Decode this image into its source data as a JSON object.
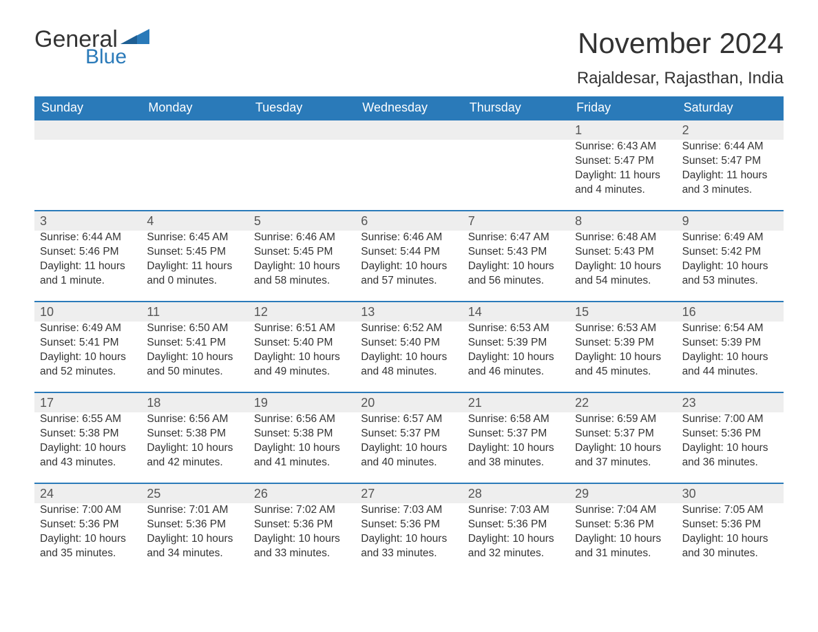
{
  "brand": {
    "word1": "General",
    "word2": "Blue",
    "accent_color": "#2a7ab9",
    "text_color": "#333333"
  },
  "title": "November 2024",
  "location": "Rajaldesar, Rajasthan, India",
  "colors": {
    "header_bg": "#2a7ab9",
    "header_text": "#ffffff",
    "daynum_bg": "#eeeeee",
    "daynum_border": "#2a7ab9",
    "body_text": "#333333",
    "page_bg": "#ffffff"
  },
  "typography": {
    "title_fontsize": 42,
    "location_fontsize": 24,
    "header_fontsize": 18,
    "daynum_fontsize": 18,
    "body_fontsize": 15.5
  },
  "weekdays": [
    "Sunday",
    "Monday",
    "Tuesday",
    "Wednesday",
    "Thursday",
    "Friday",
    "Saturday"
  ],
  "leading_blanks": 5,
  "days": [
    {
      "n": "1",
      "sunrise": "Sunrise: 6:43 AM",
      "sunset": "Sunset: 5:47 PM",
      "dl1": "Daylight: 11 hours",
      "dl2": "and 4 minutes."
    },
    {
      "n": "2",
      "sunrise": "Sunrise: 6:44 AM",
      "sunset": "Sunset: 5:47 PM",
      "dl1": "Daylight: 11 hours",
      "dl2": "and 3 minutes."
    },
    {
      "n": "3",
      "sunrise": "Sunrise: 6:44 AM",
      "sunset": "Sunset: 5:46 PM",
      "dl1": "Daylight: 11 hours",
      "dl2": "and 1 minute."
    },
    {
      "n": "4",
      "sunrise": "Sunrise: 6:45 AM",
      "sunset": "Sunset: 5:45 PM",
      "dl1": "Daylight: 11 hours",
      "dl2": "and 0 minutes."
    },
    {
      "n": "5",
      "sunrise": "Sunrise: 6:46 AM",
      "sunset": "Sunset: 5:45 PM",
      "dl1": "Daylight: 10 hours",
      "dl2": "and 58 minutes."
    },
    {
      "n": "6",
      "sunrise": "Sunrise: 6:46 AM",
      "sunset": "Sunset: 5:44 PM",
      "dl1": "Daylight: 10 hours",
      "dl2": "and 57 minutes."
    },
    {
      "n": "7",
      "sunrise": "Sunrise: 6:47 AM",
      "sunset": "Sunset: 5:43 PM",
      "dl1": "Daylight: 10 hours",
      "dl2": "and 56 minutes."
    },
    {
      "n": "8",
      "sunrise": "Sunrise: 6:48 AM",
      "sunset": "Sunset: 5:43 PM",
      "dl1": "Daylight: 10 hours",
      "dl2": "and 54 minutes."
    },
    {
      "n": "9",
      "sunrise": "Sunrise: 6:49 AM",
      "sunset": "Sunset: 5:42 PM",
      "dl1": "Daylight: 10 hours",
      "dl2": "and 53 minutes."
    },
    {
      "n": "10",
      "sunrise": "Sunrise: 6:49 AM",
      "sunset": "Sunset: 5:41 PM",
      "dl1": "Daylight: 10 hours",
      "dl2": "and 52 minutes."
    },
    {
      "n": "11",
      "sunrise": "Sunrise: 6:50 AM",
      "sunset": "Sunset: 5:41 PM",
      "dl1": "Daylight: 10 hours",
      "dl2": "and 50 minutes."
    },
    {
      "n": "12",
      "sunrise": "Sunrise: 6:51 AM",
      "sunset": "Sunset: 5:40 PM",
      "dl1": "Daylight: 10 hours",
      "dl2": "and 49 minutes."
    },
    {
      "n": "13",
      "sunrise": "Sunrise: 6:52 AM",
      "sunset": "Sunset: 5:40 PM",
      "dl1": "Daylight: 10 hours",
      "dl2": "and 48 minutes."
    },
    {
      "n": "14",
      "sunrise": "Sunrise: 6:53 AM",
      "sunset": "Sunset: 5:39 PM",
      "dl1": "Daylight: 10 hours",
      "dl2": "and 46 minutes."
    },
    {
      "n": "15",
      "sunrise": "Sunrise: 6:53 AM",
      "sunset": "Sunset: 5:39 PM",
      "dl1": "Daylight: 10 hours",
      "dl2": "and 45 minutes."
    },
    {
      "n": "16",
      "sunrise": "Sunrise: 6:54 AM",
      "sunset": "Sunset: 5:39 PM",
      "dl1": "Daylight: 10 hours",
      "dl2": "and 44 minutes."
    },
    {
      "n": "17",
      "sunrise": "Sunrise: 6:55 AM",
      "sunset": "Sunset: 5:38 PM",
      "dl1": "Daylight: 10 hours",
      "dl2": "and 43 minutes."
    },
    {
      "n": "18",
      "sunrise": "Sunrise: 6:56 AM",
      "sunset": "Sunset: 5:38 PM",
      "dl1": "Daylight: 10 hours",
      "dl2": "and 42 minutes."
    },
    {
      "n": "19",
      "sunrise": "Sunrise: 6:56 AM",
      "sunset": "Sunset: 5:38 PM",
      "dl1": "Daylight: 10 hours",
      "dl2": "and 41 minutes."
    },
    {
      "n": "20",
      "sunrise": "Sunrise: 6:57 AM",
      "sunset": "Sunset: 5:37 PM",
      "dl1": "Daylight: 10 hours",
      "dl2": "and 40 minutes."
    },
    {
      "n": "21",
      "sunrise": "Sunrise: 6:58 AM",
      "sunset": "Sunset: 5:37 PM",
      "dl1": "Daylight: 10 hours",
      "dl2": "and 38 minutes."
    },
    {
      "n": "22",
      "sunrise": "Sunrise: 6:59 AM",
      "sunset": "Sunset: 5:37 PM",
      "dl1": "Daylight: 10 hours",
      "dl2": "and 37 minutes."
    },
    {
      "n": "23",
      "sunrise": "Sunrise: 7:00 AM",
      "sunset": "Sunset: 5:36 PM",
      "dl1": "Daylight: 10 hours",
      "dl2": "and 36 minutes."
    },
    {
      "n": "24",
      "sunrise": "Sunrise: 7:00 AM",
      "sunset": "Sunset: 5:36 PM",
      "dl1": "Daylight: 10 hours",
      "dl2": "and 35 minutes."
    },
    {
      "n": "25",
      "sunrise": "Sunrise: 7:01 AM",
      "sunset": "Sunset: 5:36 PM",
      "dl1": "Daylight: 10 hours",
      "dl2": "and 34 minutes."
    },
    {
      "n": "26",
      "sunrise": "Sunrise: 7:02 AM",
      "sunset": "Sunset: 5:36 PM",
      "dl1": "Daylight: 10 hours",
      "dl2": "and 33 minutes."
    },
    {
      "n": "27",
      "sunrise": "Sunrise: 7:03 AM",
      "sunset": "Sunset: 5:36 PM",
      "dl1": "Daylight: 10 hours",
      "dl2": "and 33 minutes."
    },
    {
      "n": "28",
      "sunrise": "Sunrise: 7:03 AM",
      "sunset": "Sunset: 5:36 PM",
      "dl1": "Daylight: 10 hours",
      "dl2": "and 32 minutes."
    },
    {
      "n": "29",
      "sunrise": "Sunrise: 7:04 AM",
      "sunset": "Sunset: 5:36 PM",
      "dl1": "Daylight: 10 hours",
      "dl2": "and 31 minutes."
    },
    {
      "n": "30",
      "sunrise": "Sunrise: 7:05 AM",
      "sunset": "Sunset: 5:36 PM",
      "dl1": "Daylight: 10 hours",
      "dl2": "and 30 minutes."
    }
  ]
}
